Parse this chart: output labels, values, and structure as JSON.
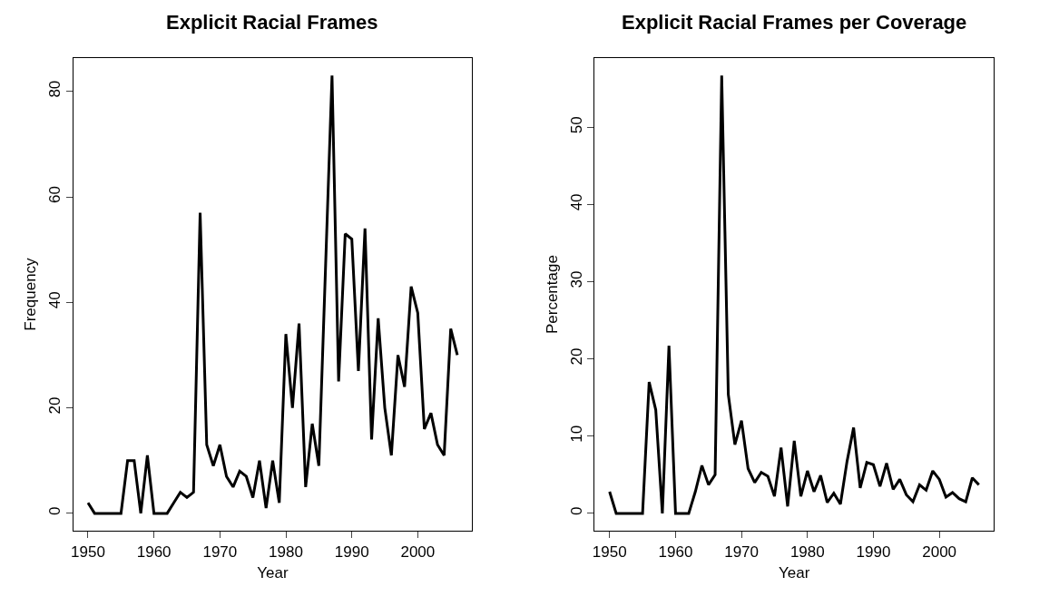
{
  "chart_data": [
    {
      "type": "line",
      "title": "Explicit Racial Frames",
      "xlabel": "Year",
      "ylabel": "Frequency",
      "x": [
        1950,
        1951,
        1952,
        1953,
        1954,
        1955,
        1956,
        1957,
        1958,
        1959,
        1960,
        1961,
        1962,
        1963,
        1964,
        1965,
        1966,
        1967,
        1968,
        1969,
        1970,
        1971,
        1972,
        1973,
        1974,
        1975,
        1976,
        1977,
        1978,
        1979,
        1980,
        1981,
        1982,
        1983,
        1984,
        1985,
        1986,
        1987,
        1988,
        1989,
        1990,
        1991,
        1992,
        1993,
        1994,
        1995,
        1996,
        1997,
        1998,
        1999,
        2000,
        2001,
        2002,
        2003,
        2004,
        2005,
        2006
      ],
      "series": [
        {
          "color": "#000000",
          "values": [
            2,
            0,
            0,
            0,
            0,
            0,
            10,
            10,
            0,
            11,
            0,
            0,
            0,
            2,
            4,
            3,
            4,
            57,
            13,
            9,
            13,
            7,
            5,
            8,
            7,
            3,
            10,
            1,
            10,
            2,
            34,
            20,
            36,
            5,
            17,
            9,
            46,
            83,
            25,
            53,
            52,
            27,
            54,
            14,
            37,
            20,
            11,
            30,
            24,
            43,
            38,
            16,
            19,
            13,
            11,
            35,
            30
          ]
        }
      ],
      "xlim": [
        1947.76,
        2008.24
      ],
      "xticks": [
        1950,
        1960,
        1970,
        1980,
        1990,
        2000
      ],
      "ylim": [
        -3.32,
        86.32
      ],
      "yticks": [
        0,
        20,
        40,
        60,
        80
      ],
      "marker": "none",
      "line_style": "solid"
    },
    {
      "type": "line",
      "title": "Explicit Racial Frames per Coverage",
      "xlabel": "Year",
      "ylabel": "Percentage",
      "x": [
        1950,
        1951,
        1952,
        1953,
        1954,
        1955,
        1956,
        1957,
        1958,
        1959,
        1960,
        1961,
        1962,
        1963,
        1964,
        1965,
        1966,
        1967,
        1968,
        1969,
        1970,
        1971,
        1972,
        1973,
        1974,
        1975,
        1976,
        1977,
        1978,
        1979,
        1980,
        1981,
        1982,
        1983,
        1984,
        1985,
        1986,
        1987,
        1988,
        1989,
        1990,
        1991,
        1992,
        1993,
        1994,
        1995,
        1996,
        1997,
        1998,
        1999,
        2000,
        2001,
        2002,
        2003,
        2004,
        2005,
        2006
      ],
      "series": [
        {
          "color": "#000000",
          "values": [
            2.8,
            0,
            0,
            0,
            0,
            0,
            17.0,
            13.4,
            0,
            21.7,
            0,
            0,
            0,
            2.8,
            6.2,
            3.7,
            5.0,
            56.7,
            15.4,
            8.9,
            12.0,
            5.8,
            4.0,
            5.3,
            4.8,
            2.2,
            8.5,
            0.9,
            9.4,
            2.2,
            5.5,
            2.8,
            4.9,
            1.4,
            2.6,
            1.2,
            6.7,
            11.1,
            3.3,
            6.6,
            6.3,
            3.5,
            6.5,
            3.1,
            4.4,
            2.4,
            1.5,
            3.7,
            3.0,
            5.5,
            4.4,
            2.1,
            2.7,
            1.9,
            1.5,
            4.6,
            3.7
          ]
        }
      ],
      "xlim": [
        1947.76,
        2008.24
      ],
      "xticks": [
        1950,
        1960,
        1970,
        1980,
        1990,
        2000
      ],
      "ylim": [
        -2.27,
        58.97
      ],
      "yticks": [
        0,
        10,
        20,
        30,
        40,
        50
      ],
      "marker": "none",
      "line_style": "solid"
    }
  ]
}
